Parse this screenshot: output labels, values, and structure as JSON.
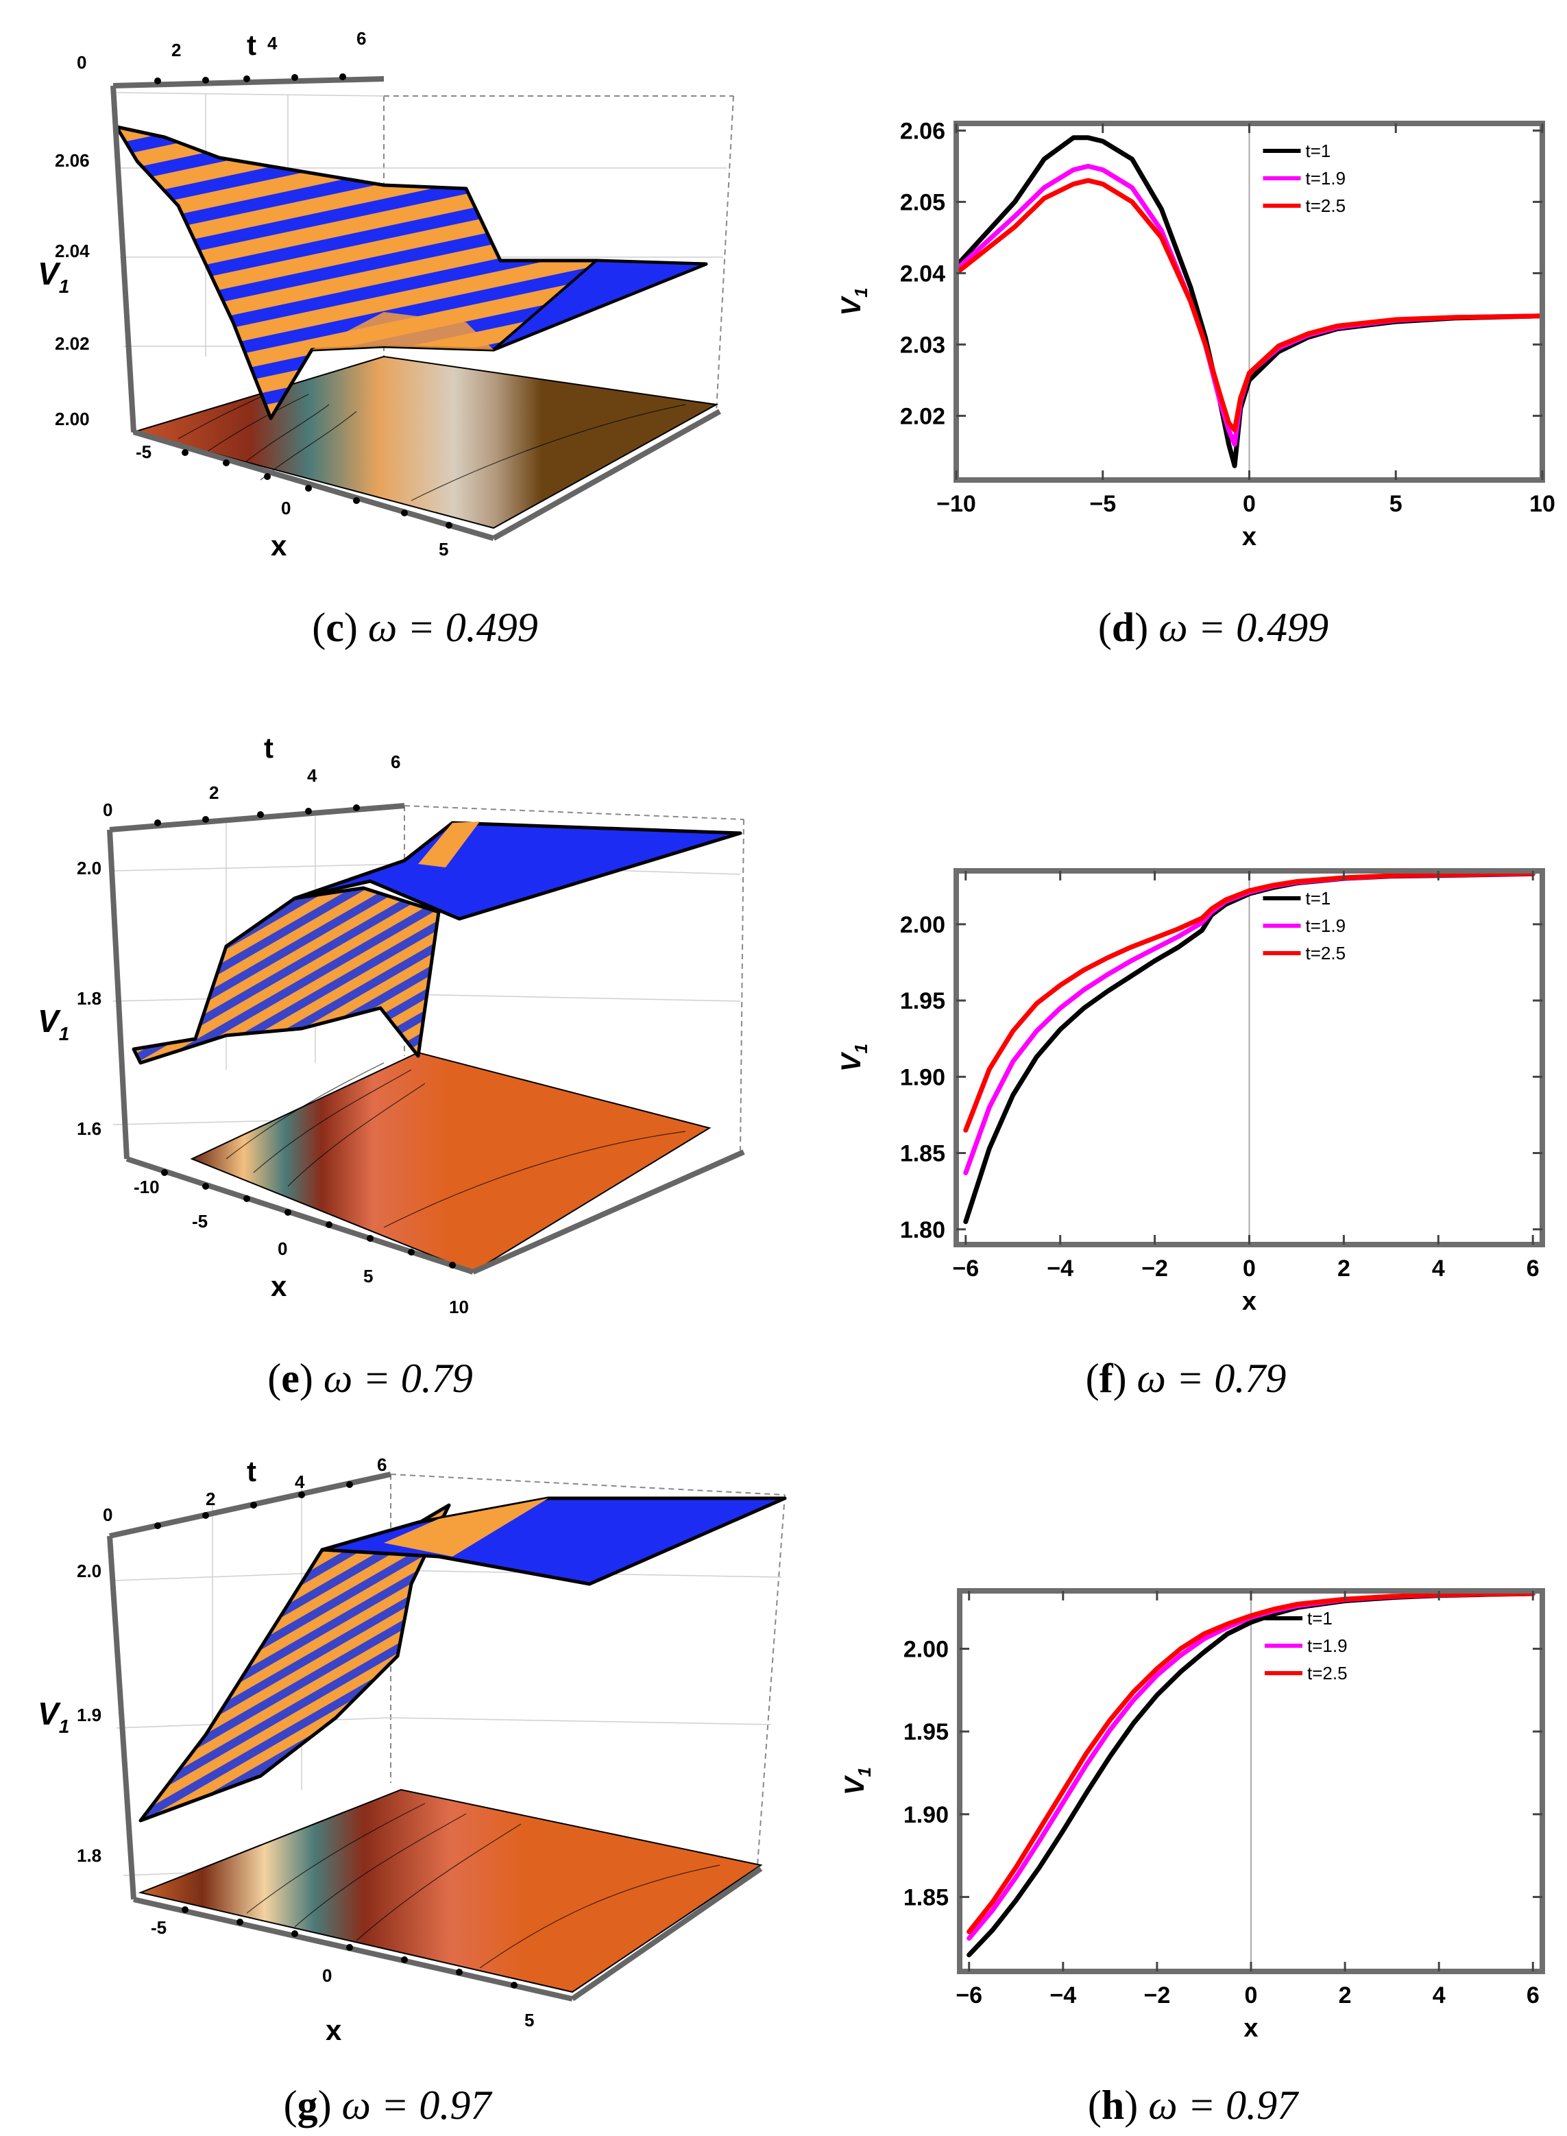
{
  "figure": {
    "panels": [
      {
        "caption_label": "c",
        "caption_rest": " ω = 0.499",
        "surface_colors": [
          "#f59f3d",
          "#1d2cf2"
        ]
      },
      {
        "caption_label": "d",
        "caption_rest": " ω = 0.499"
      },
      {
        "caption_label": "e",
        "caption_rest": " ω = 0.79",
        "surface_colors": [
          "#f59f3d",
          "#1d2cf2"
        ]
      },
      {
        "caption_label": "f",
        "caption_rest": " ω = 0.79"
      },
      {
        "caption_label": "g",
        "caption_rest": " ω = 0.97",
        "surface_colors": [
          "#f59f3d",
          "#1d2cf2"
        ]
      },
      {
        "caption_label": "h",
        "caption_rest": " ω = 0.97"
      }
    ]
  },
  "chart_data": [
    {
      "type": "surface3d",
      "panel": "c",
      "xlabel": "x",
      "ylabel": "t",
      "zlabel": "V1",
      "xticks": [
        "-5",
        "0",
        "5"
      ],
      "tticks": [
        "0",
        "2",
        "4",
        "6"
      ],
      "zticks": [
        "2.00",
        "2.02",
        "2.04",
        "2.06"
      ],
      "zlim": [
        2.0,
        2.07
      ],
      "tlim": [
        0,
        6
      ],
      "xlim": [
        -7,
        7
      ]
    },
    {
      "type": "line",
      "panel": "d",
      "xlabel": "x",
      "ylabel": "V1",
      "xlim": [
        -10,
        10
      ],
      "ylim": [
        2.011,
        2.061
      ],
      "xticks": [
        "-10",
        "-5",
        "0",
        "5",
        "10"
      ],
      "yticks": [
        "2.02",
        "2.03",
        "2.04",
        "2.05",
        "2.06"
      ],
      "legend_position": "top-center",
      "series": [
        {
          "name": "t=1",
          "color": "#000000",
          "x": [
            -10,
            -8,
            -7,
            -6,
            -5.5,
            -5,
            -4,
            -3,
            -2,
            -1.5,
            -1,
            -0.7,
            -0.5,
            -0.3,
            0,
            1,
            2,
            3,
            5,
            7,
            10
          ],
          "y": [
            2.041,
            2.05,
            2.056,
            2.059,
            2.059,
            2.0585,
            2.056,
            2.049,
            2.038,
            2.031,
            2.022,
            2.016,
            2.013,
            2.021,
            2.025,
            2.029,
            2.031,
            2.0322,
            2.0332,
            2.0337,
            2.034
          ]
        },
        {
          "name": "t=1.9",
          "color": "#ff00ff",
          "x": [
            -10,
            -8,
            -7,
            -6,
            -5.5,
            -5,
            -4,
            -3,
            -2,
            -1.5,
            -1,
            -0.7,
            -0.5,
            -0.3,
            0,
            1,
            2,
            3,
            5,
            7,
            10
          ],
          "y": [
            2.0405,
            2.048,
            2.052,
            2.0545,
            2.055,
            2.0545,
            2.052,
            2.046,
            2.036,
            2.03,
            2.022,
            2.018,
            2.016,
            2.022,
            2.026,
            2.0295,
            2.0313,
            2.0324,
            2.0334,
            2.0338,
            2.034
          ]
        },
        {
          "name": "t=2.5",
          "color": "#ff0000",
          "x": [
            -10,
            -8,
            -7,
            -6,
            -5.5,
            -5,
            -4,
            -3,
            -2,
            -1.5,
            -1,
            -0.7,
            -0.5,
            -0.3,
            0,
            1,
            2,
            3,
            5,
            7,
            10
          ],
          "y": [
            2.04,
            2.0465,
            2.0505,
            2.0525,
            2.053,
            2.0525,
            2.05,
            2.045,
            2.036,
            2.03,
            2.023,
            2.019,
            2.018,
            2.0225,
            2.026,
            2.0298,
            2.0315,
            2.0326,
            2.0335,
            2.0338,
            2.034
          ]
        }
      ]
    },
    {
      "type": "surface3d",
      "panel": "e",
      "xlabel": "x",
      "ylabel": "t",
      "zlabel": "V1",
      "xticks": [
        "-10",
        "-5",
        "0",
        "5",
        "10"
      ],
      "tticks": [
        "0",
        "2",
        "4",
        "6"
      ],
      "zticks": [
        "1.6",
        "1.8",
        "2.0"
      ],
      "zlim": [
        1.55,
        2.05
      ],
      "tlim": [
        0,
        6
      ],
      "xlim": [
        -10,
        10
      ]
    },
    {
      "type": "line",
      "panel": "f",
      "xlabel": "x",
      "ylabel": "V1",
      "xlim": [
        -6.2,
        6.2
      ],
      "ylim": [
        1.79,
        2.035
      ],
      "xticks": [
        "-6",
        "-4",
        "-2",
        "0",
        "2",
        "4",
        "6"
      ],
      "yticks": [
        "1.80",
        "1.85",
        "1.90",
        "1.95",
        "2.00"
      ],
      "legend_position": "top-center",
      "series": [
        {
          "name": "t=1",
          "color": "#000000",
          "x": [
            -6,
            -5.5,
            -5,
            -4.5,
            -4,
            -3.5,
            -3,
            -2.5,
            -2,
            -1.5,
            -1,
            -0.8,
            -0.5,
            0,
            0.5,
            1,
            2,
            3,
            4,
            5,
            6
          ],
          "y": [
            1.805,
            1.853,
            1.888,
            1.913,
            1.931,
            1.945,
            1.956,
            1.966,
            1.976,
            1.985,
            1.996,
            2.006,
            2.013,
            2.02,
            2.024,
            2.027,
            2.03,
            2.0315,
            2.032,
            2.0325,
            2.033
          ]
        },
        {
          "name": "t=1.9",
          "color": "#ff00ff",
          "x": [
            -6,
            -5.5,
            -5,
            -4.5,
            -4,
            -3.5,
            -3,
            -2.5,
            -2,
            -1.5,
            -1,
            -0.8,
            -0.5,
            0,
            0.5,
            1,
            2,
            3,
            4,
            5,
            6
          ],
          "y": [
            1.837,
            1.88,
            1.91,
            1.93,
            1.945,
            1.957,
            1.967,
            1.976,
            1.984,
            1.992,
            2.001,
            2.008,
            2.015,
            2.021,
            2.025,
            2.0275,
            2.0302,
            2.0317,
            2.0323,
            2.0327,
            2.0332
          ]
        },
        {
          "name": "t=2.5",
          "color": "#ff0000",
          "x": [
            -6,
            -5.5,
            -5,
            -4.5,
            -4,
            -3.5,
            -3,
            -2.5,
            -2,
            -1.5,
            -1,
            -0.8,
            -0.5,
            0,
            0.5,
            1,
            2,
            3,
            4,
            5,
            6
          ],
          "y": [
            1.865,
            1.905,
            1.93,
            1.948,
            1.96,
            1.97,
            1.978,
            1.985,
            1.991,
            1.997,
            2.004,
            2.01,
            2.016,
            2.022,
            2.0255,
            2.028,
            2.0305,
            2.0318,
            2.0324,
            2.0328,
            2.0333
          ]
        }
      ]
    },
    {
      "type": "surface3d",
      "panel": "g",
      "xlabel": "x",
      "ylabel": "t",
      "zlabel": "V1",
      "xticks": [
        "-5",
        "0",
        "5"
      ],
      "tticks": [
        "0",
        "2",
        "4",
        "6"
      ],
      "zticks": [
        "1.8",
        "1.9",
        "2.0"
      ],
      "zlim": [
        1.77,
        2.05
      ],
      "tlim": [
        0,
        6
      ],
      "xlim": [
        -7,
        7
      ]
    },
    {
      "type": "line",
      "panel": "h",
      "xlabel": "x",
      "ylabel": "V1",
      "xlim": [
        -6.2,
        6.2
      ],
      "ylim": [
        1.805,
        2.035
      ],
      "xticks": [
        "-6",
        "-4",
        "-2",
        "0",
        "2",
        "4",
        "6"
      ],
      "yticks": [
        "1.85",
        "1.90",
        "1.95",
        "2.00"
      ],
      "legend_position": "top-center",
      "series": [
        {
          "name": "t=1",
          "color": "#000000",
          "x": [
            -6,
            -5.5,
            -5,
            -4.5,
            -4,
            -3.5,
            -3,
            -2.5,
            -2,
            -1.5,
            -1,
            -0.5,
            0,
            0.5,
            1,
            2,
            3,
            4,
            5,
            6
          ],
          "y": [
            1.815,
            1.83,
            1.848,
            1.868,
            1.89,
            1.913,
            1.935,
            1.955,
            1.972,
            1.986,
            1.998,
            2.009,
            2.016,
            2.021,
            2.025,
            2.029,
            2.031,
            2.0322,
            2.0328,
            2.0333
          ]
        },
        {
          "name": "t=1.9",
          "color": "#ff00ff",
          "x": [
            -6,
            -5.5,
            -5,
            -4.5,
            -4,
            -3.5,
            -3,
            -2.5,
            -2,
            -1.5,
            -1,
            -0.5,
            0,
            0.5,
            1,
            2,
            3,
            4,
            5,
            6
          ],
          "y": [
            1.825,
            1.842,
            1.862,
            1.884,
            1.907,
            1.93,
            1.951,
            1.969,
            1.984,
            1.996,
            2.006,
            2.013,
            2.019,
            2.023,
            2.026,
            2.0297,
            2.0315,
            2.0325,
            2.033,
            2.0334
          ]
        },
        {
          "name": "t=2.5",
          "color": "#ff0000",
          "x": [
            -6,
            -5.5,
            -5,
            -4.5,
            -4,
            -3.5,
            -3,
            -2.5,
            -2,
            -1.5,
            -1,
            -0.5,
            0,
            0.5,
            1,
            2,
            3,
            4,
            5,
            6
          ],
          "y": [
            1.829,
            1.847,
            1.868,
            1.891,
            1.914,
            1.937,
            1.957,
            1.974,
            1.988,
            2.0,
            2.009,
            2.015,
            2.02,
            2.024,
            2.027,
            2.03,
            2.0317,
            2.0326,
            2.033,
            2.0334
          ]
        }
      ]
    }
  ]
}
